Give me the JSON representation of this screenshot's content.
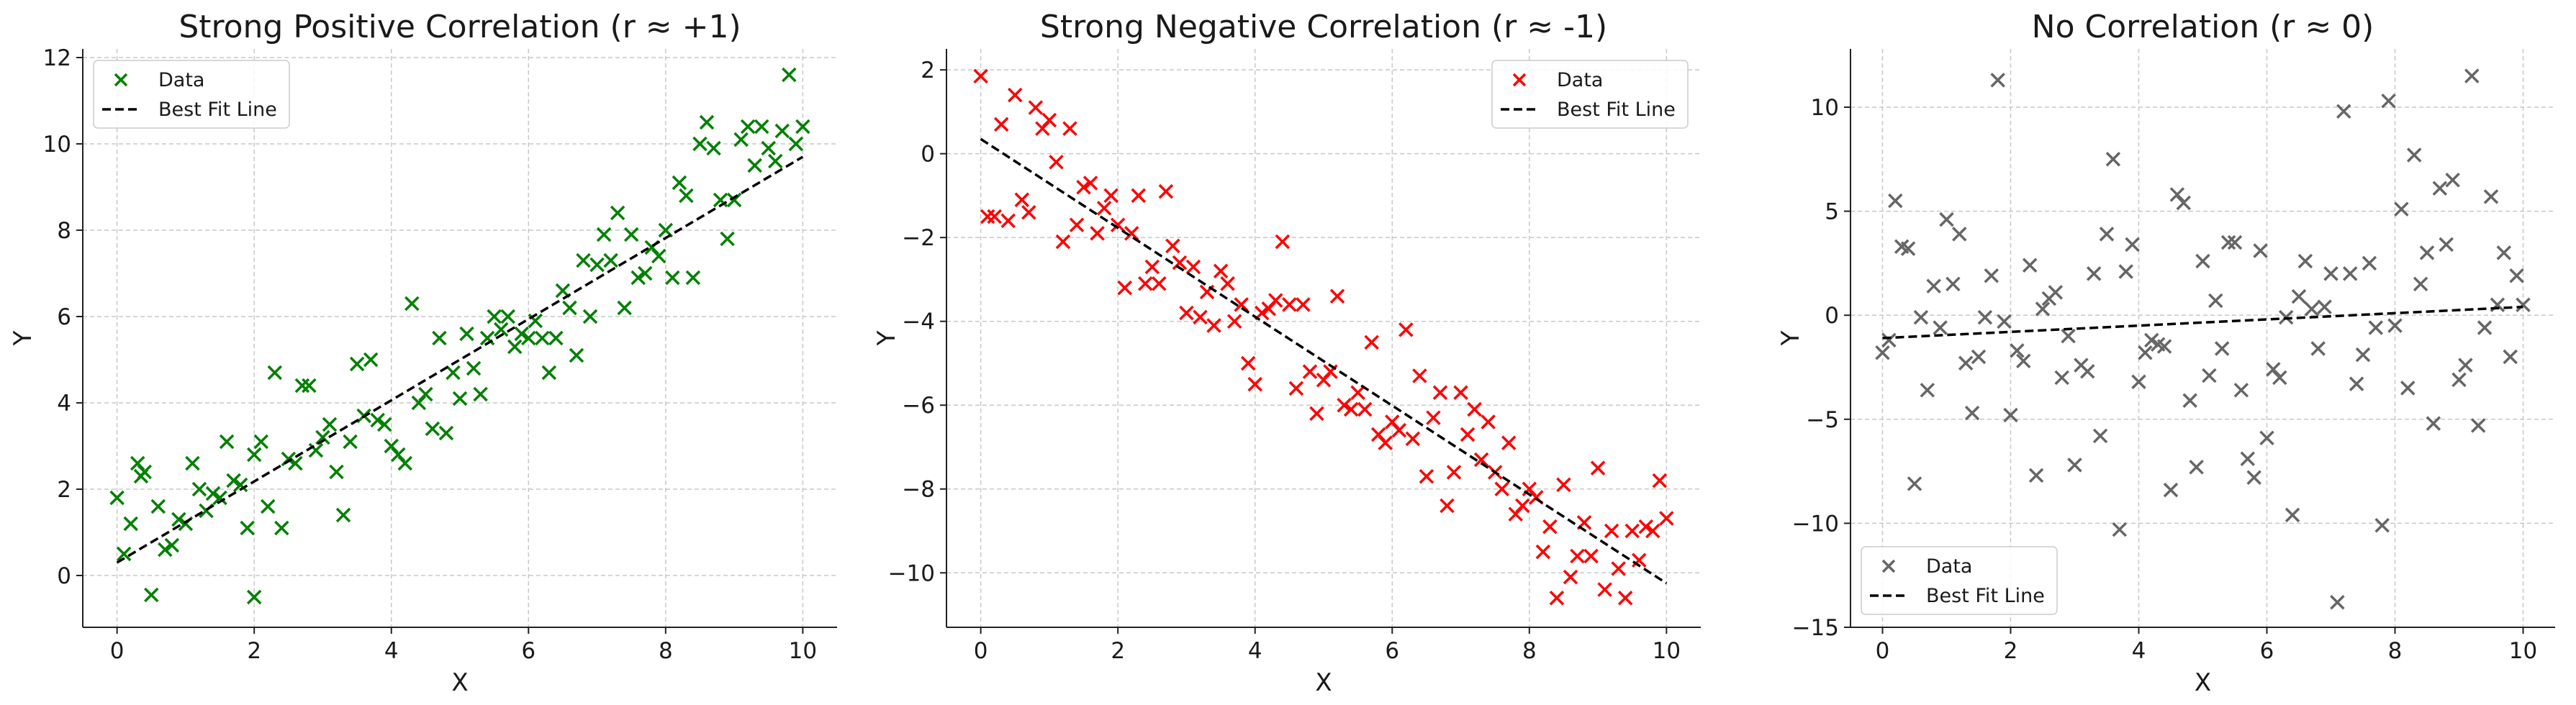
{
  "chart_data": [
    {
      "type": "scatter",
      "title": "Strong Positive Correlation (r ≈ +1)",
      "xlabel": "X",
      "ylabel": "Y",
      "xlim": [
        -0.5,
        10.5
      ],
      "ylim": [
        -1.2,
        12.2
      ],
      "xticks": [
        0,
        2,
        4,
        6,
        8,
        10
      ],
      "yticks": [
        0,
        2,
        4,
        6,
        8,
        10,
        12
      ],
      "grid": true,
      "legend_position": "top-left",
      "color": "#008000",
      "series": [
        {
          "name": "Data",
          "x": [
            0.0,
            0.1,
            0.2,
            0.3,
            0.35,
            0.4,
            0.5,
            0.6,
            0.7,
            0.8,
            0.9,
            1.0,
            1.1,
            1.2,
            1.3,
            1.4,
            1.5,
            1.6,
            1.7,
            1.8,
            1.9,
            2.0,
            2.0,
            2.1,
            2.2,
            2.3,
            2.4,
            2.5,
            2.6,
            2.7,
            2.8,
            2.9,
            3.0,
            3.1,
            3.2,
            3.3,
            3.4,
            3.5,
            3.6,
            3.7,
            3.8,
            3.9,
            4.0,
            4.1,
            4.2,
            4.3,
            4.4,
            4.5,
            4.6,
            4.7,
            4.8,
            4.9,
            5.0,
            5.1,
            5.2,
            5.3,
            5.4,
            5.5,
            5.6,
            5.7,
            5.8,
            5.9,
            6.0,
            6.1,
            6.2,
            6.3,
            6.4,
            6.5,
            6.6,
            6.7,
            6.8,
            6.9,
            7.0,
            7.1,
            7.2,
            7.3,
            7.4,
            7.5,
            7.6,
            7.7,
            7.8,
            7.9,
            8.0,
            8.1,
            8.2,
            8.3,
            8.4,
            8.5,
            8.6,
            8.7,
            8.8,
            8.9,
            9.0,
            9.1,
            9.2,
            9.3,
            9.4,
            9.5,
            9.6,
            9.7,
            9.8,
            9.9,
            10.0
          ],
          "values": [
            1.8,
            0.5,
            1.2,
            2.6,
            2.3,
            2.4,
            -0.45,
            1.6,
            0.6,
            0.7,
            1.3,
            1.2,
            2.6,
            2.0,
            1.5,
            1.9,
            1.8,
            3.1,
            2.2,
            2.1,
            1.1,
            -0.5,
            2.8,
            3.1,
            1.6,
            4.7,
            1.1,
            2.7,
            2.6,
            4.4,
            4.4,
            2.9,
            3.2,
            3.5,
            2.4,
            1.4,
            3.1,
            4.9,
            3.7,
            5.0,
            3.6,
            3.5,
            3.0,
            2.8,
            2.6,
            6.3,
            4.0,
            4.2,
            3.4,
            5.5,
            3.3,
            4.7,
            4.1,
            5.6,
            4.8,
            4.2,
            5.5,
            6.0,
            5.7,
            6.0,
            5.3,
            5.6,
            5.5,
            5.9,
            5.5,
            4.7,
            5.5,
            6.6,
            6.2,
            5.1,
            7.3,
            6.0,
            7.2,
            7.9,
            7.3,
            8.4,
            6.2,
            7.9,
            6.9,
            7.0,
            7.6,
            7.4,
            8.0,
            6.9,
            9.1,
            8.8,
            6.9,
            10.0,
            10.5,
            9.9,
            8.7,
            7.8,
            8.7,
            10.1,
            10.4,
            9.5,
            10.4,
            9.9,
            9.6,
            10.3,
            11.6,
            10.0,
            10.4
          ]
        },
        {
          "name": "Best Fit Line",
          "x": [
            0,
            10
          ],
          "values": [
            0.3,
            9.7
          ]
        }
      ]
    },
    {
      "type": "scatter",
      "title": "Strong Negative Correlation (r ≈ -1)",
      "xlabel": "X",
      "ylabel": "Y",
      "xlim": [
        -0.5,
        10.5
      ],
      "ylim": [
        -11.3,
        2.5
      ],
      "xticks": [
        0,
        2,
        4,
        6,
        8,
        10
      ],
      "yticks": [
        -10,
        -8,
        -6,
        -4,
        -2,
        0,
        2
      ],
      "grid": true,
      "legend_position": "top-right",
      "color": "#ff0000",
      "series": [
        {
          "name": "Data",
          "x": [
            0.0,
            0.1,
            0.2,
            0.3,
            0.4,
            0.5,
            0.6,
            0.7,
            0.8,
            0.9,
            1.0,
            1.1,
            1.2,
            1.3,
            1.4,
            1.5,
            1.6,
            1.7,
            1.8,
            1.9,
            2.0,
            2.1,
            2.2,
            2.3,
            2.4,
            2.5,
            2.6,
            2.7,
            2.8,
            2.9,
            3.0,
            3.1,
            3.2,
            3.3,
            3.4,
            3.5,
            3.6,
            3.7,
            3.8,
            3.9,
            4.0,
            4.1,
            4.2,
            4.3,
            4.4,
            4.5,
            4.6,
            4.7,
            4.8,
            4.9,
            5.0,
            5.1,
            5.2,
            5.3,
            5.4,
            5.5,
            5.6,
            5.7,
            5.8,
            5.9,
            6.0,
            6.1,
            6.2,
            6.3,
            6.4,
            6.5,
            6.6,
            6.7,
            6.8,
            6.9,
            7.0,
            7.1,
            7.2,
            7.3,
            7.4,
            7.5,
            7.6,
            7.7,
            7.8,
            7.9,
            8.0,
            8.1,
            8.2,
            8.3,
            8.4,
            8.5,
            8.6,
            8.7,
            8.8,
            8.9,
            9.0,
            9.1,
            9.2,
            9.3,
            9.4,
            9.5,
            9.6,
            9.7,
            9.8,
            9.9,
            10.0
          ],
          "values": [
            1.85,
            -1.5,
            -1.5,
            0.7,
            -1.6,
            1.4,
            -1.1,
            -1.4,
            1.1,
            0.6,
            0.8,
            -0.2,
            -2.1,
            0.6,
            -1.7,
            -0.8,
            -0.7,
            -1.9,
            -1.3,
            -1.0,
            -1.7,
            -3.2,
            -1.9,
            -1.0,
            -3.1,
            -2.7,
            -3.1,
            -0.9,
            -2.2,
            -2.6,
            -3.8,
            -2.7,
            -3.9,
            -3.3,
            -4.1,
            -2.8,
            -3.1,
            -4.0,
            -3.6,
            -5.0,
            -5.5,
            -3.8,
            -3.7,
            -3.5,
            -2.1,
            -3.6,
            -5.6,
            -3.6,
            -5.2,
            -6.2,
            -5.4,
            -5.2,
            -3.4,
            -6.0,
            -6.1,
            -5.7,
            -6.1,
            -4.5,
            -6.7,
            -6.9,
            -6.4,
            -6.6,
            -4.2,
            -6.8,
            -5.3,
            -7.7,
            -6.3,
            -5.7,
            -8.4,
            -7.6,
            -5.7,
            -6.7,
            -6.1,
            -7.3,
            -6.4,
            -7.6,
            -8.0,
            -6.9,
            -8.6,
            -8.4,
            -8.0,
            -8.2,
            -9.5,
            -8.9,
            -10.6,
            -7.9,
            -10.1,
            -9.6,
            -8.8,
            -9.6,
            -7.5,
            -10.4,
            -9.0,
            -9.9,
            -10.6,
            -9.0,
            -9.7,
            -8.9,
            -9.0,
            -7.8,
            -8.7
          ]
        },
        {
          "name": "Best Fit Line",
          "x": [
            0,
            10
          ],
          "values": [
            0.35,
            -10.25
          ]
        }
      ]
    },
    {
      "type": "scatter",
      "title": "No Correlation (r ≈ 0)",
      "xlabel": "X",
      "ylabel": "Y",
      "xlim": [
        -0.5,
        10.5
      ],
      "ylim": [
        -15.0,
        12.8
      ],
      "xticks": [
        0,
        2,
        4,
        6,
        8,
        10
      ],
      "yticks": [
        -15,
        -10,
        -5,
        0,
        5,
        10
      ],
      "grid": true,
      "legend_position": "bottom-left",
      "color": "#666666",
      "series": [
        {
          "name": "Data",
          "x": [
            0.0,
            0.1,
            0.2,
            0.3,
            0.4,
            0.5,
            0.6,
            0.7,
            0.8,
            0.9,
            1.0,
            1.1,
            1.2,
            1.3,
            1.4,
            1.5,
            1.6,
            1.7,
            1.8,
            1.9,
            2.0,
            2.1,
            2.2,
            2.3,
            2.4,
            2.5,
            2.6,
            2.7,
            2.8,
            2.9,
            3.0,
            3.1,
            3.2,
            3.3,
            3.4,
            3.5,
            3.6,
            3.7,
            3.8,
            3.9,
            4.0,
            4.1,
            4.2,
            4.3,
            4.4,
            4.5,
            4.6,
            4.7,
            4.8,
            4.9,
            5.0,
            5.1,
            5.2,
            5.3,
            5.4,
            5.5,
            5.6,
            5.7,
            5.8,
            5.9,
            6.0,
            6.1,
            6.2,
            6.3,
            6.4,
            6.5,
            6.6,
            6.7,
            6.8,
            6.9,
            7.0,
            7.1,
            7.2,
            7.3,
            7.4,
            7.5,
            7.6,
            7.7,
            7.8,
            7.9,
            8.0,
            8.1,
            8.2,
            8.3,
            8.4,
            8.5,
            8.6,
            8.7,
            8.8,
            8.9,
            9.0,
            9.1,
            9.2,
            9.3,
            9.4,
            9.5,
            9.6,
            9.7,
            9.8,
            9.9,
            10.0
          ],
          "values": [
            -1.8,
            -1.2,
            5.5,
            3.3,
            3.2,
            -8.1,
            -0.1,
            -3.6,
            1.4,
            -0.6,
            4.6,
            1.5,
            3.9,
            -2.3,
            -4.7,
            -2.0,
            -0.1,
            1.9,
            11.3,
            -0.3,
            -4.8,
            -1.7,
            -2.2,
            2.4,
            -7.7,
            0.3,
            0.8,
            1.1,
            -3.0,
            -1.0,
            -7.2,
            -2.4,
            -2.7,
            2.0,
            -5.8,
            3.9,
            7.5,
            -10.3,
            2.1,
            3.4,
            -3.2,
            -1.8,
            -1.2,
            -1.4,
            -1.5,
            -8.4,
            5.8,
            5.4,
            -4.1,
            -7.3,
            2.6,
            -2.9,
            0.7,
            -1.6,
            3.5,
            3.5,
            -3.6,
            -6.9,
            -7.8,
            3.1,
            -5.9,
            -2.6,
            -3.0,
            -0.1,
            -9.6,
            0.9,
            2.6,
            0.3,
            -1.6,
            0.4,
            2.0,
            -13.8,
            9.8,
            2.0,
            -3.3,
            -1.9,
            2.5,
            -0.6,
            -10.1,
            10.3,
            -0.5,
            5.1,
            -3.5,
            7.7,
            1.5,
            3.0,
            -5.2,
            6.1,
            3.4,
            6.5,
            -3.1,
            -2.4,
            11.5,
            -5.3,
            -0.6,
            5.7,
            0.5,
            3.0,
            -2.0,
            1.9,
            0.5
          ]
        },
        {
          "name": "Best Fit Line",
          "x": [
            0,
            10
          ],
          "values": [
            -1.1,
            0.4
          ]
        }
      ]
    }
  ]
}
